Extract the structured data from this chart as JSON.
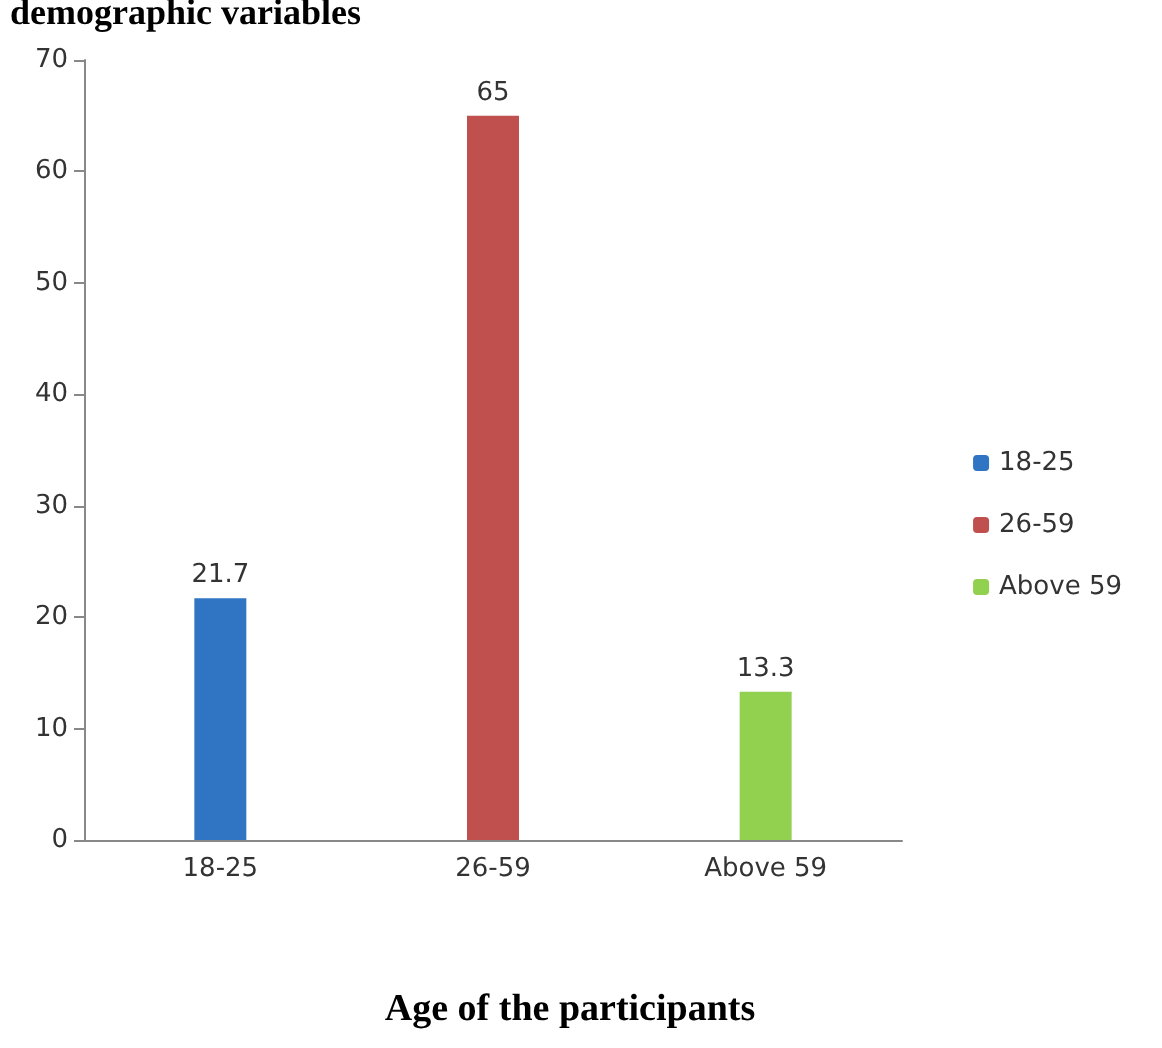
{
  "chart_data": {
    "type": "bar",
    "title": "demographic variables",
    "xlabel": "Age of the participants",
    "categories": [
      "18-25",
      "26-59",
      "Above 59"
    ],
    "series": [
      {
        "name": "18-25",
        "color": "#2f75c4",
        "values": [
          21.7,
          null,
          null
        ]
      },
      {
        "name": "26-59",
        "color": "#c0504d",
        "values": [
          null,
          65,
          null
        ]
      },
      {
        "name": "Above 59",
        "color": "#92d050",
        "values": [
          null,
          null,
          13.3
        ]
      }
    ],
    "ylim": [
      0,
      70
    ],
    "yticks": [
      0,
      10,
      20,
      30,
      40,
      50,
      60,
      70
    ],
    "grid": false,
    "legend": "right",
    "data_labels": true
  }
}
